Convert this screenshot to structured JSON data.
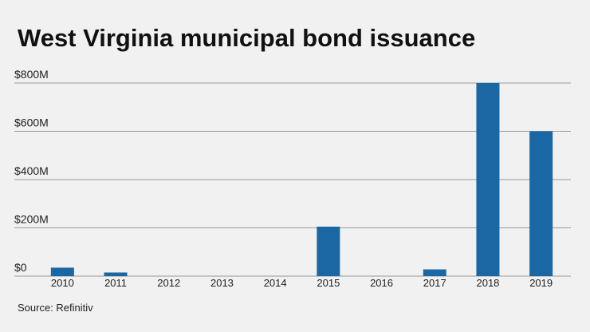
{
  "source": "Source: Refinitiv",
  "colors": {
    "bar": "#1a67a3",
    "grid": "#999999",
    "text": "#222222",
    "background": "#f0f1f0"
  },
  "chart_data": {
    "type": "bar",
    "title": "West Virginia municipal bond issuance",
    "xlabel": "",
    "ylabel": "",
    "categories": [
      "2010",
      "2011",
      "2012",
      "2013",
      "2014",
      "2015",
      "2016",
      "2017",
      "2018",
      "2019"
    ],
    "values": [
      35,
      15,
      0,
      0,
      0,
      205,
      0,
      28,
      800,
      600
    ],
    "value_unit": "$M",
    "ylim": [
      0,
      800
    ],
    "yticks": [
      0,
      200,
      400,
      600,
      800
    ],
    "ytick_labels": [
      "$0",
      "$200M",
      "$400M",
      "$600M",
      "$800M"
    ],
    "grid": true,
    "legend": "none"
  }
}
